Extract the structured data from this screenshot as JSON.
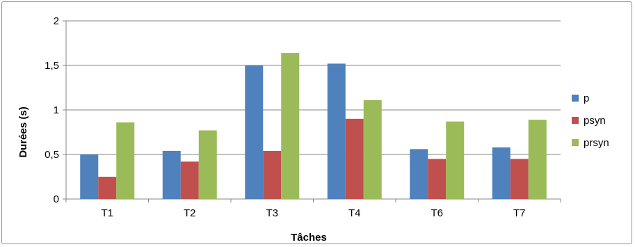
{
  "chart_data": {
    "type": "bar",
    "xlabel": "Tâches",
    "ylabel": "Durées (s)",
    "ylim": [
      0,
      2
    ],
    "yticks": [
      "0",
      "0,5",
      "1",
      "1,5",
      "2"
    ],
    "ytick_values": [
      0,
      0.5,
      1,
      1.5,
      2
    ],
    "grid": true,
    "legend_position": "right",
    "categories": [
      "T1",
      "T2",
      "T3",
      "T4",
      "T6",
      "T7"
    ],
    "series": [
      {
        "name": "p",
        "color": "#4f81bd",
        "values": [
          0.5,
          0.54,
          1.5,
          1.52,
          0.56,
          0.58
        ]
      },
      {
        "name": "psyn",
        "color": "#c0504d",
        "values": [
          0.25,
          0.42,
          0.54,
          0.9,
          0.45,
          0.45
        ]
      },
      {
        "name": "prsyn",
        "color": "#9bbb59",
        "values": [
          0.86,
          0.77,
          1.64,
          1.11,
          0.87,
          0.89
        ]
      }
    ]
  }
}
